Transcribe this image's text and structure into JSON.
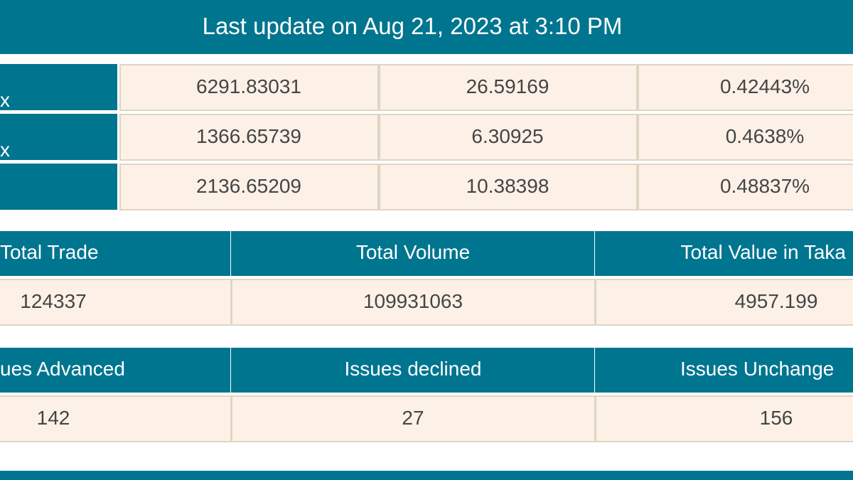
{
  "header": {
    "title": "Last update on Aug 21, 2023 at 3:10 PM"
  },
  "index_table": {
    "rows": [
      {
        "label": "x",
        "cells": [
          "6291.83031",
          "26.59169",
          "0.42443%"
        ]
      },
      {
        "label": "x",
        "cells": [
          "1366.65739",
          "6.30925",
          "0.4638%"
        ]
      },
      {
        "cells": [
          "2136.65209",
          "10.38398",
          "0.48837%"
        ]
      }
    ]
  },
  "trade_table": {
    "headers": [
      "Total Trade",
      "Total Volume",
      "Total Value in Taka"
    ],
    "values": [
      "124337",
      "109931063",
      "4957.199"
    ]
  },
  "issues_table": {
    "headers": [
      "ues Advanced",
      "Issues declined",
      "Issues Unchange"
    ],
    "values": [
      "142",
      "27",
      "156"
    ]
  }
}
